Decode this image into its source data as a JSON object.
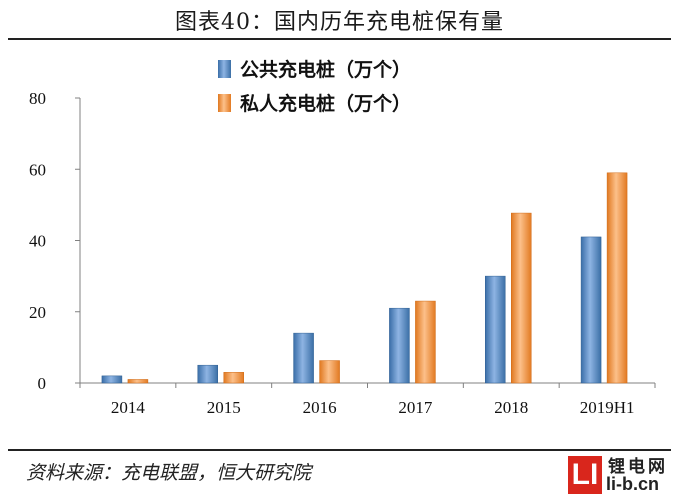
{
  "title": "图表40：国内历年充电桩保有量",
  "source": "资料来源：充电联盟，恒大研究院",
  "watermark": {
    "logo": "LI",
    "cn": "锂电网",
    "en": "li-b.cn"
  },
  "colors": {
    "public": "#4f81bd",
    "private": "#f79646",
    "axis": "#808080"
  },
  "chart_data": {
    "type": "bar",
    "categories": [
      "2014",
      "2015",
      "2016",
      "2017",
      "2018",
      "2019H1"
    ],
    "series": [
      {
        "name": "公共充电桩（万个）",
        "values": [
          2.0,
          5.0,
          14.0,
          21.0,
          30.0,
          41.0
        ]
      },
      {
        "name": "私人充电桩（万个）",
        "values": [
          1.0,
          3.0,
          6.3,
          23.0,
          47.7,
          59.0
        ]
      }
    ],
    "ylim": [
      0,
      80
    ],
    "yticks": [
      0,
      20,
      40,
      60,
      80
    ],
    "xlabel": "",
    "ylabel": "",
    "legend": "top-center",
    "grid": false
  }
}
